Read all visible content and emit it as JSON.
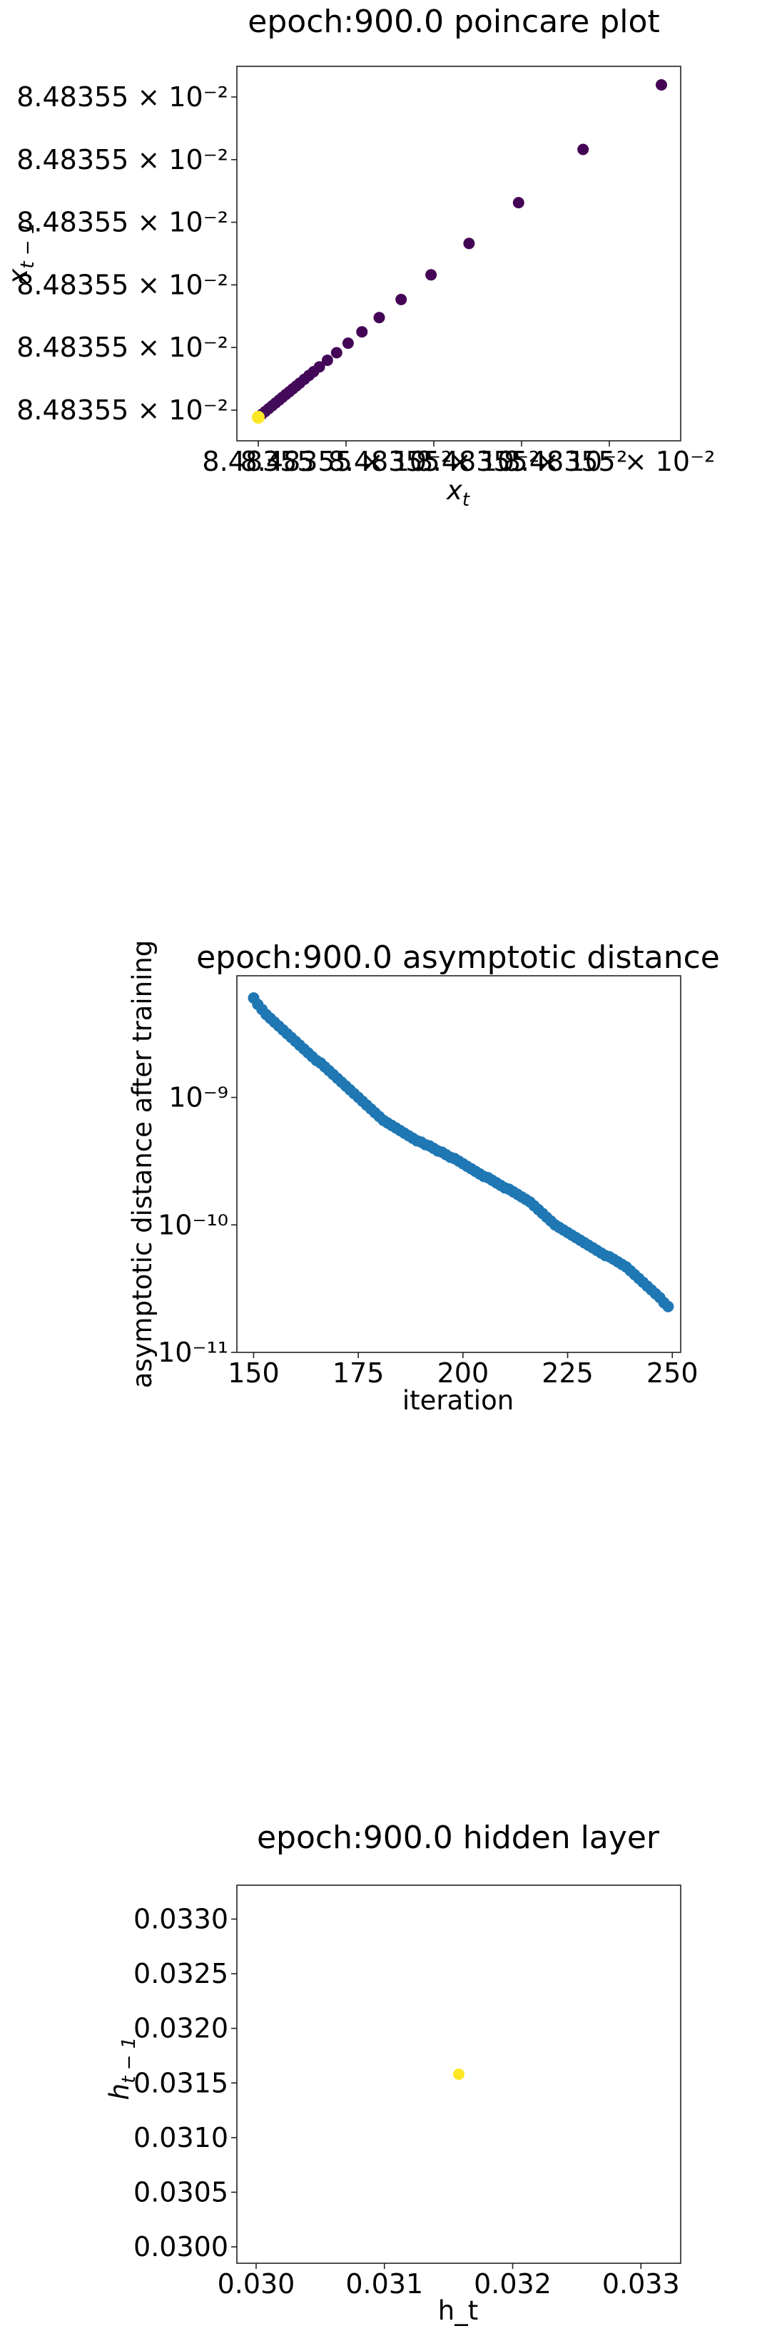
{
  "chart_data": [
    {
      "type": "scatter",
      "title": "epoch:900.0 poincare plot",
      "xlabel": "x_t",
      "ylabel": "x_{t-1}",
      "colormap": "viridis",
      "x_ticks": [
        "8.48355",
        "8.48355 × 10⁻²",
        "8.48355 × 10⁻²",
        "8.48355 × 10⁻²",
        "8.48355 × 10⁻²"
      ],
      "x_offset_label": "× 10⁻²",
      "y_ticks": [
        "8.48355 × 10⁻²",
        "8.48355 × 10⁻²",
        "8.48355 × 10⁻²",
        "8.48355 × 10⁻²",
        "8.48355 × 10⁻²",
        "8.48355 × 10⁻²"
      ],
      "points": [
        {
          "x": 0.0,
          "y": 0.0
        },
        {
          "x": 0.3,
          "y": 0.3
        },
        {
          "x": 0.6,
          "y": 0.6
        },
        {
          "x": 0.9,
          "y": 0.9
        },
        {
          "x": 1.2,
          "y": 1.2
        },
        {
          "x": 1.5,
          "y": 1.5
        },
        {
          "x": 1.8,
          "y": 1.8
        },
        {
          "x": 2.1,
          "y": 2.1
        },
        {
          "x": 2.4,
          "y": 2.4
        },
        {
          "x": 2.7,
          "y": 2.7
        },
        {
          "x": 3.0,
          "y": 3.0
        },
        {
          "x": 3.3,
          "y": 3.3
        },
        {
          "x": 3.6,
          "y": 3.6
        },
        {
          "x": 4.0,
          "y": 4.0
        },
        {
          "x": 4.4,
          "y": 4.4
        },
        {
          "x": 4.8,
          "y": 4.8
        },
        {
          "x": 5.3,
          "y": 5.3
        },
        {
          "x": 6.0,
          "y": 6.0
        },
        {
          "x": 6.8,
          "y": 6.8
        },
        {
          "x": 7.8,
          "y": 7.8
        },
        {
          "x": 9.0,
          "y": 9.0
        },
        {
          "x": 10.5,
          "y": 10.5
        },
        {
          "x": 12.4,
          "y": 12.4
        },
        {
          "x": 15.0,
          "y": 15.0
        },
        {
          "x": 18.3,
          "y": 18.3
        },
        {
          "x": 22.6,
          "y": 22.6
        },
        {
          "x": 28.2,
          "y": 28.2
        },
        {
          "x": 35.0,
          "y": 35.0
        }
      ]
    },
    {
      "type": "scatter",
      "title": "epoch:900.0 asymptotic distance",
      "xlabel": "iteration",
      "ylabel": "asymptotic distance after training",
      "yscale": "log",
      "xlim": [
        146,
        252
      ],
      "ylim": [
        1e-11,
        9e-09
      ],
      "x_ticks": [
        150,
        175,
        200,
        225,
        250
      ],
      "x_tick_labels": [
        "150",
        "175",
        "200",
        "225",
        "250"
      ],
      "y_ticks": [
        1e-11,
        1e-10,
        1e-09
      ],
      "y_tick_labels": [
        "10⁻¹¹",
        "10⁻¹⁰",
        "10⁻⁹"
      ],
      "color": "#1f77b4",
      "x_start": 150,
      "x_end": 249,
      "log10_values": [
        -8.22,
        -8.27,
        -8.31,
        -8.35,
        -8.38,
        -8.41,
        -8.44,
        -8.47,
        -8.5,
        -8.53,
        -8.56,
        -8.59,
        -8.62,
        -8.65,
        -8.68,
        -8.71,
        -8.73,
        -8.76,
        -8.79,
        -8.82,
        -8.85,
        -8.88,
        -8.91,
        -8.94,
        -8.97,
        -9.0,
        -9.03,
        -9.06,
        -9.09,
        -9.12,
        -9.15,
        -9.18,
        -9.2,
        -9.22,
        -9.24,
        -9.26,
        -9.28,
        -9.3,
        -9.32,
        -9.34,
        -9.35,
        -9.37,
        -9.38,
        -9.4,
        -9.42,
        -9.43,
        -9.45,
        -9.47,
        -9.48,
        -9.5,
        -9.52,
        -9.54,
        -9.56,
        -9.58,
        -9.6,
        -9.62,
        -9.63,
        -9.65,
        -9.67,
        -9.69,
        -9.71,
        -9.72,
        -9.74,
        -9.76,
        -9.78,
        -9.8,
        -9.82,
        -9.85,
        -9.88,
        -9.91,
        -9.94,
        -9.97,
        -10.0,
        -10.02,
        -10.04,
        -10.06,
        -10.08,
        -10.1,
        -10.12,
        -10.14,
        -10.16,
        -10.18,
        -10.2,
        -10.22,
        -10.24,
        -10.25,
        -10.27,
        -10.29,
        -10.31,
        -10.33,
        -10.36,
        -10.39,
        -10.42,
        -10.45,
        -10.48,
        -10.51,
        -10.54,
        -10.57,
        -10.61,
        -10.64
      ]
    },
    {
      "type": "scatter",
      "title": "epoch:900.0 hidden layer",
      "xlabel": "h_t",
      "ylabel": "h_{t-1}",
      "xlim": [
        0.02985,
        0.03331
      ],
      "ylim": [
        0.02985,
        0.03331
      ],
      "x_ticks": [
        0.03,
        0.031,
        0.032,
        0.033
      ],
      "x_tick_labels": [
        "0.030",
        "0.031",
        "0.032",
        "0.033"
      ],
      "y_ticks": [
        0.03,
        0.0305,
        0.031,
        0.0315,
        0.032,
        0.0325,
        0.033
      ],
      "y_tick_labels": [
        "0.0300",
        "0.0305",
        "0.0310",
        "0.0315",
        "0.0320",
        "0.0325",
        "0.0330"
      ],
      "points": [
        {
          "x": 0.03158,
          "y": 0.03158
        }
      ],
      "color": "#fde725"
    }
  ]
}
